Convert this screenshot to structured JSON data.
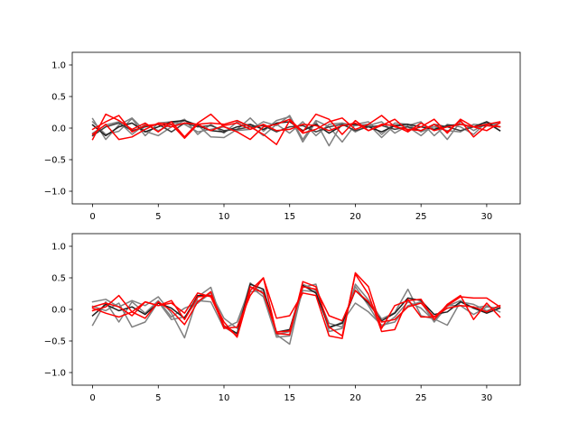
{
  "chart_data": [
    {
      "type": "line",
      "title": "",
      "xlabel": "",
      "ylabel": "",
      "xlim": [
        -1.55,
        32.55
      ],
      "ylim": [
        -1.2,
        1.2
      ],
      "xticks": [
        0,
        5,
        10,
        15,
        20,
        25,
        30
      ],
      "yticks": [
        -1.0,
        -0.5,
        0.0,
        0.5,
        1.0
      ],
      "xtick_labels": [
        "0",
        "5",
        "10",
        "15",
        "20",
        "25",
        "30"
      ],
      "ytick_labels": [
        "−1.0",
        "−0.5",
        "0.0",
        "0.5",
        "1.0"
      ],
      "grid": false,
      "x": [
        0,
        1,
        2,
        3,
        4,
        5,
        6,
        7,
        8,
        9,
        10,
        11,
        12,
        13,
        14,
        15,
        16,
        17,
        18,
        19,
        20,
        21,
        22,
        23,
        24,
        25,
        26,
        27,
        28,
        29,
        30,
        31
      ],
      "series": [
        {
          "color": "#808080",
          "values": [
            0.15,
            -0.18,
            0.05,
            0.16,
            -0.05,
            -0.12,
            0.02,
            0.12,
            0.05,
            -0.14,
            -0.15,
            -0.02,
            0.16,
            -0.05,
            0.12,
            0.18,
            -0.22,
            0.1,
            -0.28,
            0.08,
            0.04,
            0.06,
            -0.15,
            0.05,
            0.02,
            -0.12,
            0.06,
            -0.18,
            0.1,
            -0.04,
            0.08,
            -0.04
          ]
        },
        {
          "color": "#808080",
          "values": [
            0.1,
            -0.1,
            -0.05,
            0.15,
            -0.12,
            0.08,
            0.1,
            0.06,
            -0.06,
            -0.02,
            0.02,
            -0.04,
            -0.02,
            0.1,
            0.04,
            0.2,
            -0.18,
            0.12,
            0.02,
            -0.22,
            0.06,
            0.1,
            -0.1,
            0.08,
            0.06,
            -0.06,
            0.02,
            -0.04,
            -0.06,
            0.06,
            0.04,
            0.08
          ]
        },
        {
          "color": "#808080",
          "values": [
            -0.08,
            0.05,
            0.1,
            -0.1,
            0.06,
            -0.04,
            0.06,
            0.14,
            -0.1,
            0.06,
            -0.08,
            0.1,
            0.04,
            -0.12,
            0.06,
            -0.08,
            0.1,
            -0.12,
            0.06,
            0.08,
            -0.06,
            0.04,
            0.1,
            -0.08,
            0.04,
            0.1,
            -0.12,
            0.06,
            0.02,
            -0.1,
            0.1,
            0.02
          ]
        },
        {
          "color": "#202020",
          "values": [
            0.05,
            -0.12,
            0.02,
            0.08,
            -0.06,
            0.02,
            0.1,
            0.12,
            0.04,
            -0.04,
            -0.06,
            0.02,
            0.06,
            -0.02,
            0.08,
            0.1,
            -0.04,
            0.06,
            -0.08,
            0.04,
            0.06,
            0.02,
            -0.06,
            0.04,
            0.06,
            0.02,
            -0.02,
            0.04,
            0.06,
            0.02,
            0.1,
            -0.04
          ]
        },
        {
          "color": "#404040",
          "values": [
            -0.12,
            0.02,
            0.08,
            -0.04,
            0.02,
            0.06,
            -0.06,
            0.08,
            0.02,
            0.04,
            -0.04,
            -0.02,
            0.02,
            0.04,
            -0.06,
            0.02,
            0.04,
            -0.06,
            0.02,
            0.06,
            -0.04,
            0.02,
            0.04,
            -0.02,
            0.02,
            -0.04,
            0.06,
            0.02,
            -0.04,
            0.02,
            0.04,
            0.02
          ]
        },
        {
          "color": "#ff0000",
          "values": [
            -0.18,
            0.22,
            0.12,
            -0.02,
            0.08,
            -0.06,
            0.1,
            -0.14,
            0.08,
            0.22,
            0.02,
            -0.06,
            -0.18,
            0.02,
            0.06,
            0.14,
            -0.06,
            0.22,
            0.14,
            -0.1,
            0.12,
            -0.04,
            0.04,
            0.14,
            -0.04,
            0.02,
            0.14,
            -0.08,
            0.14,
            0.02,
            0.06,
            0.1
          ]
        },
        {
          "color": "#ff0000",
          "values": [
            -0.1,
            0.06,
            -0.18,
            -0.14,
            -0.02,
            0.08,
            0.06,
            -0.16,
            0.06,
            0.08,
            0.06,
            0.12,
            0.02,
            -0.1,
            -0.26,
            0.12,
            -0.08,
            -0.02,
            0.1,
            0.16,
            -0.02,
            0.06,
            0.2,
            0.02,
            -0.02,
            -0.04,
            0.06,
            -0.06,
            0.12,
            -0.14,
            0.04,
            0.02
          ]
        },
        {
          "color": "#ff0000",
          "values": [
            -0.02,
            0.1,
            0.2,
            -0.06,
            0.04,
            0.06,
            0.02,
            0.08,
            0.06,
            -0.04,
            0.04,
            0.08,
            -0.02,
            0.06,
            -0.04,
            -0.02,
            0.06,
            0.04,
            -0.04,
            0.04,
            0.08,
            -0.04,
            0.06,
            0.04,
            -0.06,
            0.08,
            -0.04,
            0.02,
            0.06,
            0.02,
            -0.04,
            0.08
          ]
        }
      ]
    },
    {
      "type": "line",
      "title": "",
      "xlabel": "",
      "ylabel": "",
      "xlim": [
        -1.55,
        32.55
      ],
      "ylim": [
        -1.2,
        1.2
      ],
      "xticks": [
        0,
        5,
        10,
        15,
        20,
        25,
        30
      ],
      "yticks": [
        -1.0,
        -0.5,
        0.0,
        0.5,
        1.0
      ],
      "xtick_labels": [
        "0",
        "5",
        "10",
        "15",
        "20",
        "25",
        "30"
      ],
      "ytick_labels": [
        "−1.0",
        "−0.5",
        "0.0",
        "0.5",
        "1.0"
      ],
      "grid": false,
      "x": [
        0,
        1,
        2,
        3,
        4,
        5,
        6,
        7,
        8,
        9,
        10,
        11,
        12,
        13,
        14,
        15,
        16,
        17,
        18,
        19,
        20,
        21,
        22,
        23,
        24,
        25,
        26,
        27,
        28,
        29,
        30,
        31
      ],
      "series": [
        {
          "color": "#808080",
          "values": [
            0.12,
            0.16,
            0.04,
            0.14,
            0.06,
            0.2,
            -0.06,
            -0.45,
            0.2,
            0.35,
            -0.28,
            -0.4,
            0.28,
            0.3,
            -0.4,
            -0.55,
            0.35,
            0.4,
            -0.35,
            -0.3,
            0.4,
            0.15,
            -0.15,
            -0.05,
            0.32,
            -0.1,
            -0.15,
            -0.25,
            0.12,
            0.08,
            -0.02,
            0.06
          ]
        },
        {
          "color": "#808080",
          "values": [
            -0.25,
            0.12,
            -0.2,
            0.12,
            -0.06,
            0.14,
            -0.12,
            0.02,
            0.1,
            0.26,
            -0.14,
            -0.3,
            0.42,
            0.24,
            -0.4,
            -0.35,
            0.4,
            0.3,
            -0.3,
            -0.2,
            0.1,
            -0.04,
            -0.25,
            -0.2,
            0.06,
            0.12,
            -0.2,
            0.05,
            0.14,
            0.02,
            0.06,
            -0.04
          ]
        },
        {
          "color": "#808080",
          "values": [
            0.05,
            -0.02,
            0.1,
            -0.28,
            -0.2,
            0.12,
            -0.16,
            -0.12,
            0.14,
            0.12,
            -0.3,
            -0.2,
            0.36,
            0.2,
            -0.44,
            -0.42,
            0.3,
            0.28,
            -0.22,
            -0.28,
            0.36,
            0.06,
            -0.28,
            -0.12,
            0.12,
            0.02,
            -0.18,
            0.06,
            0.06,
            -0.08,
            0.04,
            0.02
          ]
        },
        {
          "color": "#202020",
          "values": [
            -0.1,
            0.08,
            -0.02,
            0.04,
            -0.08,
            0.1,
            0.02,
            -0.14,
            0.22,
            0.22,
            -0.26,
            -0.38,
            0.4,
            0.32,
            -0.36,
            -0.32,
            0.38,
            0.26,
            -0.28,
            -0.22,
            0.3,
            0.1,
            -0.18,
            -0.06,
            0.18,
            0.14,
            -0.08,
            -0.04,
            0.12,
            0.02,
            -0.06,
            0.02
          ]
        },
        {
          "color": "#ff0000",
          "values": [
            0.04,
            0.1,
            0.04,
            -0.1,
            0.12,
            0.06,
            0.14,
            -0.16,
            0.2,
            0.22,
            -0.2,
            -0.44,
            0.3,
            0.5,
            -0.38,
            -0.4,
            0.44,
            0.36,
            -0.28,
            -0.42,
            0.56,
            0.24,
            -0.35,
            -0.32,
            0.16,
            -0.12,
            -0.12,
            0.06,
            0.2,
            0.18,
            0.18,
            0.04
          ]
        },
        {
          "color": "#ff0000",
          "values": [
            -0.02,
            0.04,
            0.22,
            -0.04,
            -0.14,
            0.12,
            -0.02,
            -0.24,
            0.12,
            0.28,
            -0.3,
            -0.28,
            0.22,
            0.5,
            -0.14,
            -0.1,
            0.26,
            0.22,
            -0.42,
            -0.46,
            0.58,
            0.36,
            -0.3,
            0.06,
            0.14,
            0.16,
            -0.16,
            0.08,
            0.22,
            -0.16,
            0.1,
            -0.12
          ]
        },
        {
          "color": "#ff0000",
          "values": [
            0.02,
            -0.06,
            -0.12,
            -0.04,
            0.12,
            0.06,
            0.1,
            -0.06,
            0.26,
            0.2,
            -0.26,
            -0.42,
            0.36,
            0.26,
            -0.36,
            -0.34,
            0.36,
            0.32,
            -0.1,
            -0.18,
            0.3,
            0.12,
            -0.2,
            -0.16,
            0.04,
            0.1,
            -0.12,
            0.02,
            0.06,
            0.04,
            -0.04,
            0.06
          ]
        }
      ]
    }
  ]
}
